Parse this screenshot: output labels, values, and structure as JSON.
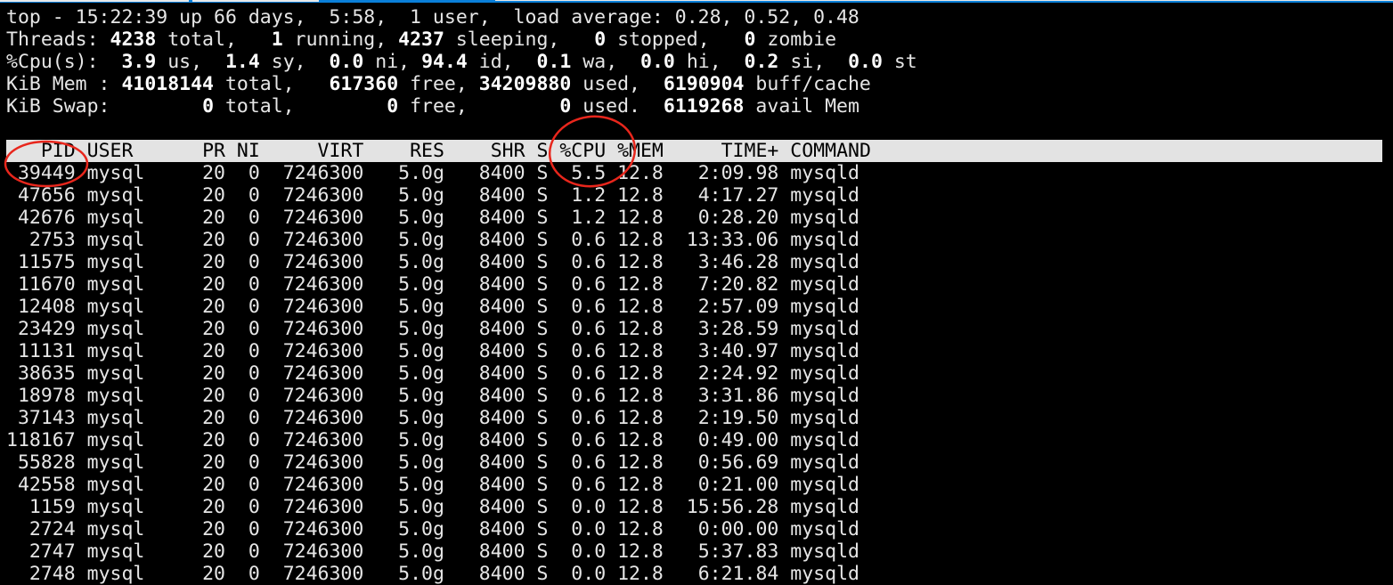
{
  "colors": {
    "background": "#000000",
    "text": "#e6e6e6",
    "header_bar": "#e3e3e3",
    "annotation": "#e8261c",
    "window_accent": "#0a7fd8"
  },
  "summary": [
    [
      {
        "t": "top - 15:22:39 up 66 days,  5:58,  1 user,  load average: 0.28, 0.52, 0.48",
        "b": false
      }
    ],
    [
      {
        "t": "Threads: ",
        "b": false
      },
      {
        "t": "4238",
        "b": true
      },
      {
        "t": " total,   ",
        "b": false
      },
      {
        "t": "1",
        "b": true
      },
      {
        "t": " running, ",
        "b": false
      },
      {
        "t": "4237",
        "b": true
      },
      {
        "t": " sleeping,   ",
        "b": false
      },
      {
        "t": "0",
        "b": true
      },
      {
        "t": " stopped,   ",
        "b": false
      },
      {
        "t": "0",
        "b": true
      },
      {
        "t": " zombie",
        "b": false
      }
    ],
    [
      {
        "t": "%Cpu(s):  ",
        "b": false
      },
      {
        "t": "3.9",
        "b": true
      },
      {
        "t": " us,  ",
        "b": false
      },
      {
        "t": "1.4",
        "b": true
      },
      {
        "t": " sy,  ",
        "b": false
      },
      {
        "t": "0.0",
        "b": true
      },
      {
        "t": " ni, ",
        "b": false
      },
      {
        "t": "94.4",
        "b": true
      },
      {
        "t": " id,  ",
        "b": false
      },
      {
        "t": "0.1",
        "b": true
      },
      {
        "t": " wa,  ",
        "b": false
      },
      {
        "t": "0.0",
        "b": true
      },
      {
        "t": " hi,  ",
        "b": false
      },
      {
        "t": "0.2",
        "b": true
      },
      {
        "t": " si,  ",
        "b": false
      },
      {
        "t": "0.0",
        "b": true
      },
      {
        "t": " st",
        "b": false
      }
    ],
    [
      {
        "t": "KiB Mem : ",
        "b": false
      },
      {
        "t": "41018144",
        "b": true
      },
      {
        "t": " total,   ",
        "b": false
      },
      {
        "t": "617360",
        "b": true
      },
      {
        "t": " free, ",
        "b": false
      },
      {
        "t": "34209880",
        "b": true
      },
      {
        "t": " used,  ",
        "b": false
      },
      {
        "t": "6190904",
        "b": true
      },
      {
        "t": " buff/cache",
        "b": false
      }
    ],
    [
      {
        "t": "KiB Swap:        ",
        "b": false
      },
      {
        "t": "0",
        "b": true
      },
      {
        "t": " total,        ",
        "b": false
      },
      {
        "t": "0",
        "b": true
      },
      {
        "t": " free,        ",
        "b": false
      },
      {
        "t": "0",
        "b": true
      },
      {
        "t": " used.  ",
        "b": false
      },
      {
        "t": "6119268",
        "b": true
      },
      {
        "t": " avail Mem",
        "b": false
      }
    ]
  ],
  "columns": [
    "PID",
    "USER",
    "PR",
    "NI",
    "VIRT",
    "RES",
    "SHR",
    "S",
    "%CPU",
    "%MEM",
    "TIME+",
    "COMMAND"
  ],
  "processes": [
    [
      "39449",
      "mysql",
      "20",
      "0",
      "7246300",
      "5.0g",
      "8400",
      "S",
      "5.5",
      "12.8",
      "2:09.98",
      "mysqld"
    ],
    [
      "47656",
      "mysql",
      "20",
      "0",
      "7246300",
      "5.0g",
      "8400",
      "S",
      "1.2",
      "12.8",
      "4:17.27",
      "mysqld"
    ],
    [
      "42676",
      "mysql",
      "20",
      "0",
      "7246300",
      "5.0g",
      "8400",
      "S",
      "1.2",
      "12.8",
      "0:28.20",
      "mysqld"
    ],
    [
      "2753",
      "mysql",
      "20",
      "0",
      "7246300",
      "5.0g",
      "8400",
      "S",
      "0.6",
      "12.8",
      "13:33.06",
      "mysqld"
    ],
    [
      "11575",
      "mysql",
      "20",
      "0",
      "7246300",
      "5.0g",
      "8400",
      "S",
      "0.6",
      "12.8",
      "3:46.28",
      "mysqld"
    ],
    [
      "11670",
      "mysql",
      "20",
      "0",
      "7246300",
      "5.0g",
      "8400",
      "S",
      "0.6",
      "12.8",
      "7:20.82",
      "mysqld"
    ],
    [
      "12408",
      "mysql",
      "20",
      "0",
      "7246300",
      "5.0g",
      "8400",
      "S",
      "0.6",
      "12.8",
      "2:57.09",
      "mysqld"
    ],
    [
      "23429",
      "mysql",
      "20",
      "0",
      "7246300",
      "5.0g",
      "8400",
      "S",
      "0.6",
      "12.8",
      "3:28.59",
      "mysqld"
    ],
    [
      "11131",
      "mysql",
      "20",
      "0",
      "7246300",
      "5.0g",
      "8400",
      "S",
      "0.6",
      "12.8",
      "3:40.97",
      "mysqld"
    ],
    [
      "38635",
      "mysql",
      "20",
      "0",
      "7246300",
      "5.0g",
      "8400",
      "S",
      "0.6",
      "12.8",
      "2:24.92",
      "mysqld"
    ],
    [
      "18978",
      "mysql",
      "20",
      "0",
      "7246300",
      "5.0g",
      "8400",
      "S",
      "0.6",
      "12.8",
      "3:31.86",
      "mysqld"
    ],
    [
      "37143",
      "mysql",
      "20",
      "0",
      "7246300",
      "5.0g",
      "8400",
      "S",
      "0.6",
      "12.8",
      "2:19.50",
      "mysqld"
    ],
    [
      "118167",
      "mysql",
      "20",
      "0",
      "7246300",
      "5.0g",
      "8400",
      "S",
      "0.6",
      "12.8",
      "0:49.00",
      "mysqld"
    ],
    [
      "55828",
      "mysql",
      "20",
      "0",
      "7246300",
      "5.0g",
      "8400",
      "S",
      "0.6",
      "12.8",
      "0:56.69",
      "mysqld"
    ],
    [
      "42558",
      "mysql",
      "20",
      "0",
      "7246300",
      "5.0g",
      "8400",
      "S",
      "0.6",
      "12.8",
      "0:21.00",
      "mysqld"
    ],
    [
      "1159",
      "mysql",
      "20",
      "0",
      "7246300",
      "5.0g",
      "8400",
      "S",
      "0.0",
      "12.8",
      "15:56.28",
      "mysqld"
    ],
    [
      "2724",
      "mysql",
      "20",
      "0",
      "7246300",
      "5.0g",
      "8400",
      "S",
      "0.0",
      "12.8",
      "0:00.00",
      "mysqld"
    ],
    [
      "2747",
      "mysql",
      "20",
      "0",
      "7246300",
      "5.0g",
      "8400",
      "S",
      "0.0",
      "12.8",
      "5:37.83",
      "mysqld"
    ],
    [
      "2748",
      "mysql",
      "20",
      "0",
      "7246300",
      "5.0g",
      "8400",
      "S",
      "0.0",
      "12.8",
      "6:21.84",
      "mysqld"
    ]
  ]
}
